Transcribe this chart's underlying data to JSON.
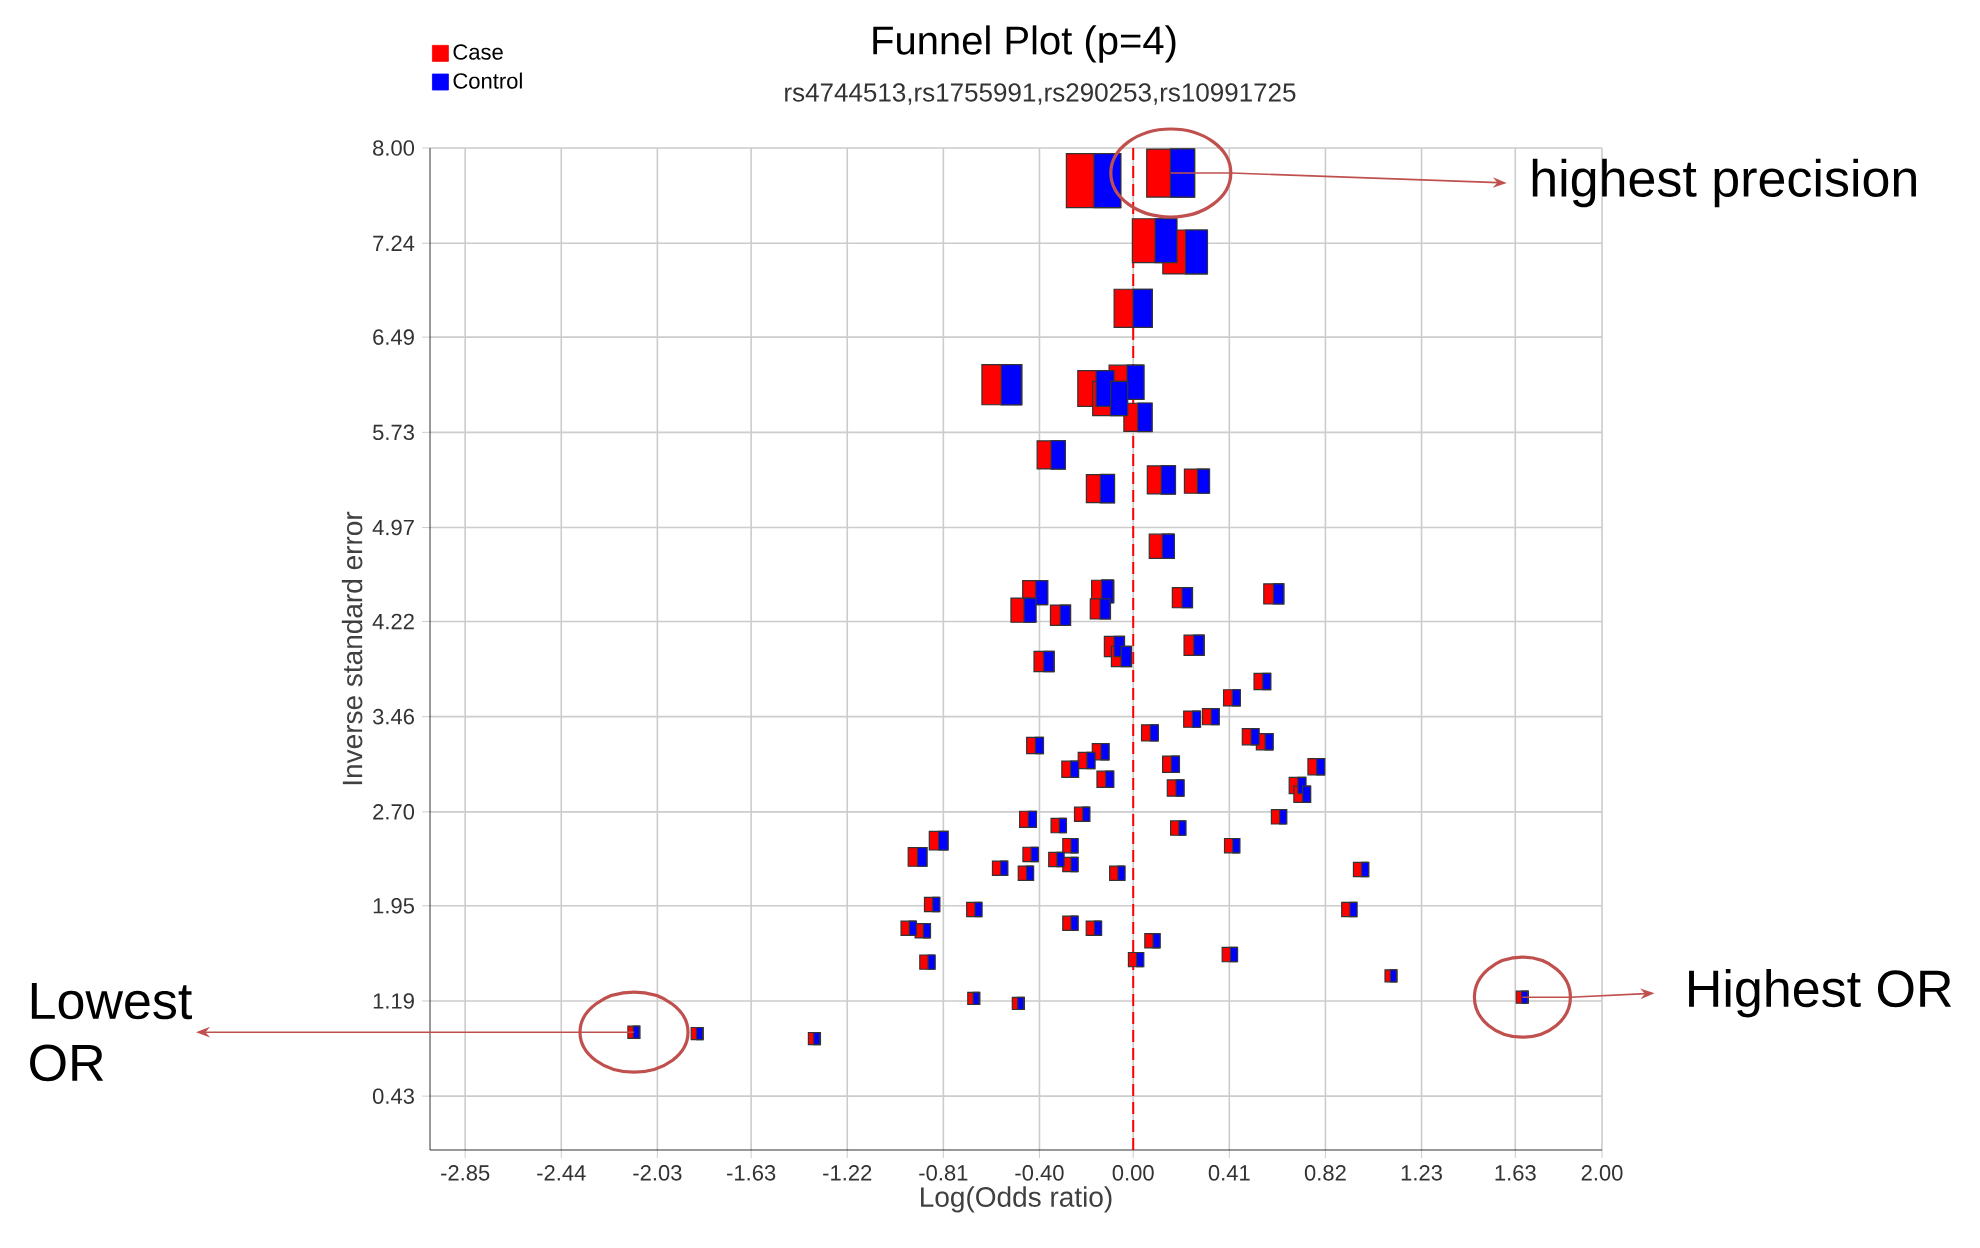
{
  "chart_data": {
    "type": "bubble",
    "title": "Funnel Plot (p=4)",
    "subtitle": "rs4744513,rs1755991,rs290253,rs10991725",
    "xlabel": "Log(Odds ratio)",
    "ylabel": "Inverse standard error",
    "xlim": [
      -3.0,
      2.0
    ],
    "ylim": [
      0,
      8.0
    ],
    "xticks": [
      -2.85,
      -2.44,
      -2.03,
      -1.63,
      -1.22,
      -0.81,
      {
        "value": -0.4,
        "label": "-0.40"
      },
      {
        "value": 0,
        "label": "0.00"
      },
      0.41,
      0.82,
      1.23,
      1.63,
      {
        "value": 2,
        "label": "2.00"
      }
    ],
    "yticks": [
      0.43,
      1.19,
      1.95,
      {
        "value": 2.7,
        "label": "2.70"
      },
      3.46,
      4.22,
      4.97,
      5.73,
      6.49,
      7.24,
      {
        "value": 8,
        "label": "8.00"
      }
    ],
    "grid": true,
    "legend": "top left",
    "marker": "square",
    "ref_lines": [
      {
        "axis": "x",
        "value": 0,
        "color": "#ff0000",
        "line_style": "dashed"
      }
    ],
    "annotations": [
      {
        "text": "highest precision",
        "x": 0.16,
        "y": 7.8
      },
      {
        "text": "Highest OR",
        "x": 1.66,
        "y": 1.22
      },
      {
        "text": "Lowest OR",
        "x": -2.13,
        "y": 0.94
      }
    ],
    "series": [
      {
        "name": "Case",
        "color": "#ff0000",
        "x": [
          -0.17,
          0.16,
          0.09,
          0.22,
          0.0,
          -0.56,
          -0.16,
          -0.03,
          -0.1,
          0.02,
          -0.35,
          -0.14,
          0.12,
          0.27,
          0.12,
          -0.42,
          -0.47,
          -0.13,
          -0.14,
          -0.31,
          0.21,
          0.6,
          -0.08,
          -0.05,
          0.26,
          -0.38,
          0.55,
          0.42,
          0.25,
          0.33,
          0.5,
          0.56,
          0.78,
          0.7,
          0.72,
          0.07,
          0.16,
          0.18,
          -0.42,
          -0.14,
          -0.2,
          -0.27,
          -0.12,
          -0.45,
          -0.22,
          -0.32,
          0.19,
          0.62,
          -0.83,
          -0.92,
          -0.27,
          -0.44,
          -0.33,
          -0.27,
          -0.57,
          -0.46,
          -0.07,
          0.42,
          0.97,
          -0.86,
          -0.68,
          0.92,
          -0.96,
          -0.9,
          -0.27,
          -0.17,
          0.08,
          0.01,
          0.41,
          -0.88,
          1.1,
          -0.68,
          -0.49,
          -1.36,
          1.66,
          -2.13,
          -1.86
        ],
        "values": [
          7.74,
          7.8,
          7.26,
          7.17,
          6.72,
          6.11,
          6.08,
          6.13,
          6.0,
          5.85,
          5.55,
          5.28,
          5.35,
          5.34,
          4.82,
          4.45,
          4.31,
          4.46,
          4.32,
          4.27,
          4.41,
          4.44,
          4.02,
          3.94,
          4.03,
          3.9,
          3.74,
          3.61,
          3.44,
          3.46,
          3.3,
          3.26,
          3.06,
          2.91,
          2.84,
          3.33,
          3.08,
          2.89,
          3.23,
          3.18,
          3.11,
          3.04,
          2.96,
          2.64,
          2.68,
          2.59,
          2.57,
          2.66,
          2.47,
          2.34,
          2.43,
          2.36,
          2.32,
          2.28,
          2.25,
          2.21,
          2.21,
          2.43,
          2.24,
          1.96,
          1.92,
          1.92,
          1.77,
          1.75,
          1.81,
          1.77,
          1.67,
          1.52,
          1.56,
          1.5,
          1.39,
          1.21,
          1.17,
          0.89,
          1.22,
          0.94,
          0.93
        ],
        "sizes": [
          1.0,
          0.79,
          0.66,
          0.66,
          0.5,
          0.55,
          0.44,
          0.4,
          0.4,
          0.27,
          0.27,
          0.27,
          0.27,
          0.2,
          0.2,
          0.2,
          0.2,
          0.17,
          0.14,
          0.14,
          0.14,
          0.14,
          0.14,
          0.14,
          0.14,
          0.14,
          0.09,
          0.09,
          0.09,
          0.09,
          0.09,
          0.09,
          0.09,
          0.09,
          0.09,
          0.09,
          0.09,
          0.09,
          0.09,
          0.09,
          0.09,
          0.09,
          0.09,
          0.09,
          0.07,
          0.07,
          0.07,
          0.07,
          0.12,
          0.12,
          0.07,
          0.07,
          0.07,
          0.07,
          0.07,
          0.07,
          0.07,
          0.07,
          0.07,
          0.07,
          0.07,
          0.07,
          0.07,
          0.07,
          0.07,
          0.07,
          0.07,
          0.07,
          0.07,
          0.07,
          0.05,
          0.05,
          0.05,
          0.05,
          0.05,
          0.05,
          0.05
        ]
      },
      {
        "name": "Control",
        "color": "#0000ff",
        "x": [
          -0.11,
          0.21,
          0.14,
          0.27,
          0.04,
          -0.52,
          -0.12,
          0.01,
          -0.06,
          0.05,
          -0.32,
          -0.11,
          0.15,
          0.3,
          0.15,
          -0.39,
          -0.44,
          -0.11,
          -0.12,
          -0.29,
          0.23,
          0.62,
          -0.06,
          -0.03,
          0.28,
          -0.36,
          0.57,
          0.44,
          0.27,
          0.35,
          0.52,
          0.58,
          0.8,
          0.72,
          0.74,
          0.09,
          0.18,
          0.2,
          -0.4,
          -0.12,
          -0.18,
          -0.25,
          -0.1,
          -0.43,
          -0.2,
          -0.3,
          0.21,
          0.64,
          -0.81,
          -0.9,
          -0.25,
          -0.42,
          -0.31,
          -0.25,
          -0.55,
          -0.44,
          -0.05,
          0.44,
          0.99,
          -0.84,
          -0.66,
          0.94,
          -0.94,
          -0.88,
          -0.25,
          -0.15,
          0.1,
          0.03,
          0.43,
          -0.86,
          1.11,
          -0.67,
          -0.48,
          -1.35,
          1.67,
          -2.12,
          -1.85
        ],
        "values": [
          7.74,
          7.8,
          7.26,
          7.17,
          6.72,
          6.11,
          6.08,
          6.13,
          6.0,
          5.85,
          5.55,
          5.28,
          5.35,
          5.34,
          4.82,
          4.45,
          4.31,
          4.46,
          4.32,
          4.27,
          4.41,
          4.44,
          4.02,
          3.94,
          4.03,
          3.9,
          3.74,
          3.61,
          3.44,
          3.46,
          3.3,
          3.26,
          3.06,
          2.91,
          2.84,
          3.33,
          3.08,
          2.89,
          3.23,
          3.18,
          3.11,
          3.04,
          2.96,
          2.64,
          2.68,
          2.59,
          2.57,
          2.66,
          2.47,
          2.34,
          2.43,
          2.36,
          2.32,
          2.28,
          2.25,
          2.21,
          2.21,
          2.43,
          2.24,
          1.96,
          1.92,
          1.92,
          1.77,
          1.75,
          1.81,
          1.77,
          1.67,
          1.52,
          1.56,
          1.5,
          1.39,
          1.21,
          1.17,
          0.89,
          1.22,
          0.94,
          0.93
        ],
        "sizes": [
          0.5,
          0.4,
          0.33,
          0.33,
          0.25,
          0.28,
          0.22,
          0.2,
          0.2,
          0.14,
          0.14,
          0.14,
          0.14,
          0.1,
          0.1,
          0.1,
          0.1,
          0.09,
          0.07,
          0.07,
          0.07,
          0.07,
          0.07,
          0.07,
          0.07,
          0.07,
          0.045,
          0.045,
          0.045,
          0.045,
          0.045,
          0.045,
          0.045,
          0.045,
          0.045,
          0.045,
          0.045,
          0.045,
          0.045,
          0.045,
          0.045,
          0.045,
          0.045,
          0.045,
          0.035,
          0.035,
          0.035,
          0.035,
          0.06,
          0.06,
          0.035,
          0.035,
          0.035,
          0.035,
          0.035,
          0.035,
          0.035,
          0.035,
          0.035,
          0.035,
          0.035,
          0.035,
          0.035,
          0.035,
          0.035,
          0.035,
          0.035,
          0.035,
          0.035,
          0.035,
          0.025,
          0.025,
          0.025,
          0.025,
          0.025,
          0.025,
          0.025
        ]
      }
    ]
  }
}
